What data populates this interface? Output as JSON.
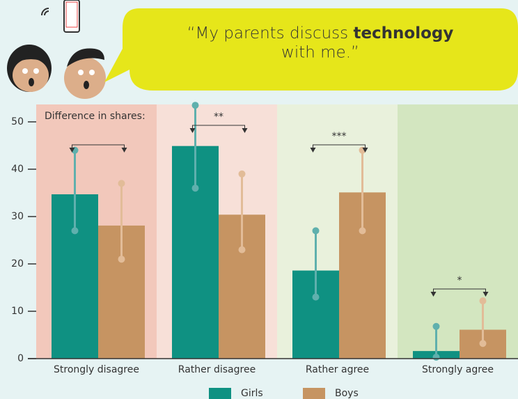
{
  "chart_data": {
    "type": "bar",
    "title_lines": [
      "“My parents discuss technology",
      "with me.”"
    ],
    "title_emphasis": "technology",
    "annotation": "Difference in shares:",
    "categories": [
      "Strongly disagree",
      "Rather disagree",
      "Rather agree",
      "Strongly agree"
    ],
    "band_colors": [
      "#f2c8bb",
      "#f7e0d8",
      "#e9f1dc",
      "#d3e6c0"
    ],
    "series": [
      {
        "name": "Girls",
        "color": "#0f9182",
        "error_color": "#5fb0ad",
        "values": [
          34.7,
          44.9,
          18.6,
          1.6
        ],
        "lower": [
          27,
          36,
          13,
          0.3
        ],
        "upper": [
          44,
          53.5,
          27,
          6.8
        ]
      },
      {
        "name": "Boys",
        "color": "#c69462",
        "error_color": "#e2bc98",
        "values": [
          28.1,
          30.4,
          35.1,
          6.1
        ],
        "lower": [
          21,
          23,
          27,
          3.2
        ],
        "upper": [
          37,
          39,
          44,
          12.2
        ]
      }
    ],
    "significance": [
      null,
      "**",
      "***",
      "*"
    ],
    "ylim": [
      0,
      50
    ],
    "yticks": [
      0,
      10,
      20,
      30,
      40,
      50
    ]
  }
}
